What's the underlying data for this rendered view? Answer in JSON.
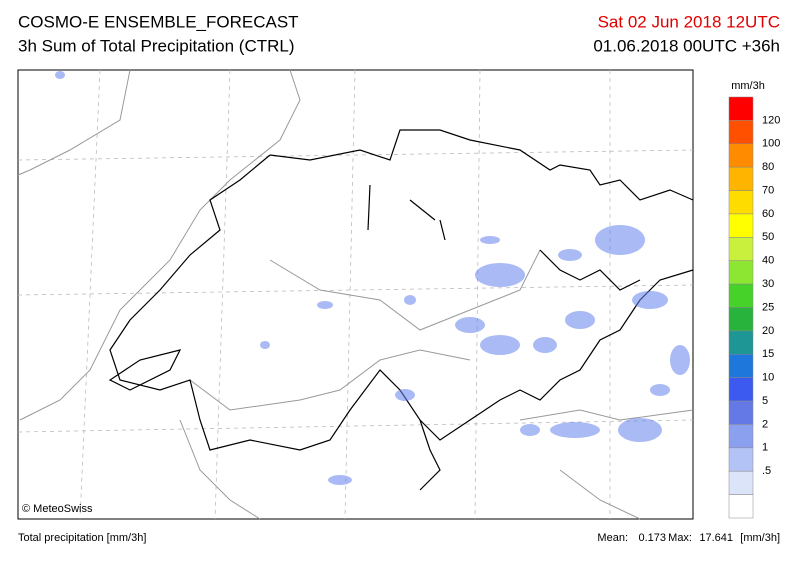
{
  "header": {
    "title": "COSMO-E ENSEMBLE_FORECAST",
    "subtitle": "3h Sum of Total Precipitation (CTRL)",
    "valid_time": "Sat 02 Jun 2018 12UTC",
    "run_time": "01.06.2018 00UTC +36h"
  },
  "map": {
    "credit": "© MeteoSwiss"
  },
  "legend": {
    "unit": "mm/3h",
    "labels": [
      "120",
      "100",
      "80",
      "70",
      "60",
      "50",
      "40",
      "30",
      "25",
      "20",
      "15",
      "10",
      "5",
      "2",
      "1",
      ".5"
    ],
    "colors": [
      "#ff0000",
      "#ff5000",
      "#ff8c00",
      "#ffb400",
      "#ffdc00",
      "#ffff00",
      "#c8f03c",
      "#8ce632",
      "#46d228",
      "#28b43c",
      "#1e9696",
      "#1e78dc",
      "#3c5af0",
      "#6478e6",
      "#8ca0f0",
      "#b4c3f5",
      "#dce4fa",
      "#ffffff"
    ]
  },
  "footer": {
    "left": "Total precipitation [mm/3h]",
    "mean_label": "Mean:",
    "mean": "0.173",
    "max_label": "Max:",
    "max": "17.641",
    "unit": "[mm/3h]"
  }
}
